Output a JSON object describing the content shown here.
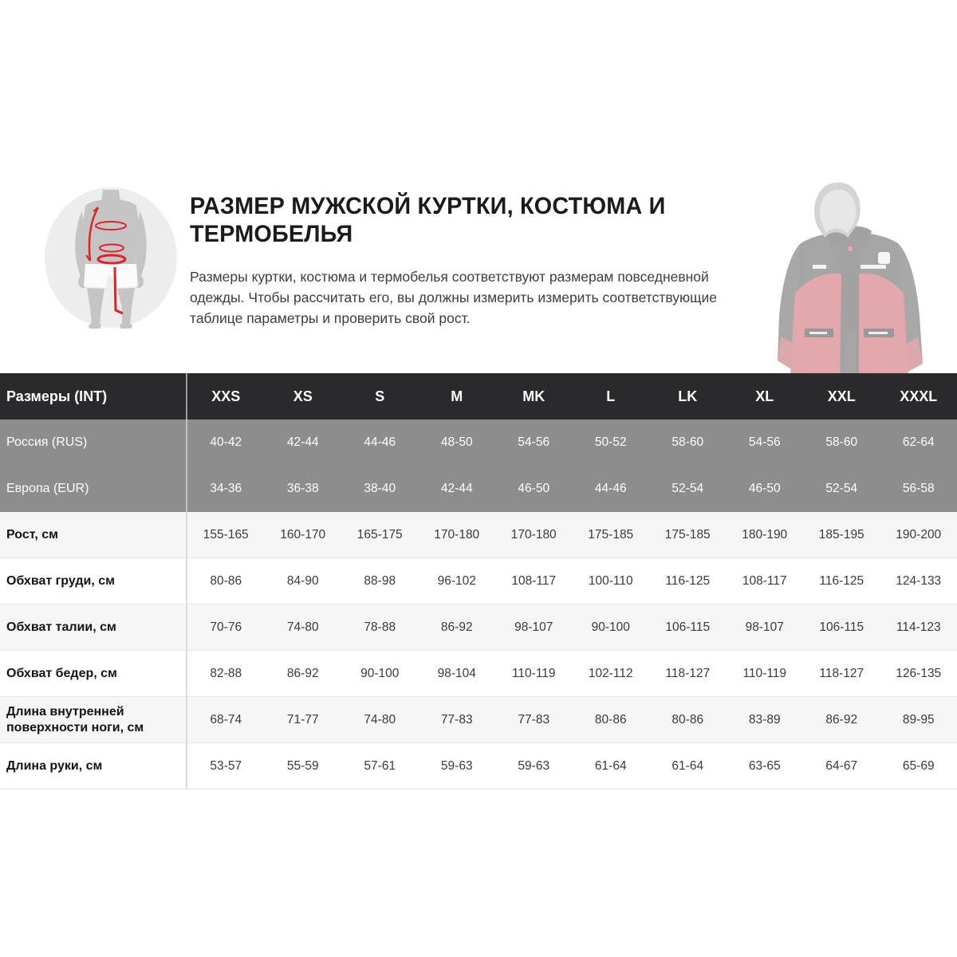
{
  "header": {
    "title": "Размер мужской куртки, костюма и термобелья",
    "description": "Размеры куртки, костюма и термобелья соответствуют размерам повседневной одежды. Чтобы рассчитать его, вы должны измерить измерить соответствующие таблице параметры и проверить свой рост."
  },
  "illustrations": {
    "body_diagram": "body-measurement-diagram",
    "jacket_image": "jacket-product-image"
  },
  "colors": {
    "accent_red": "#e31e24",
    "header_dark": "#2a2a2c",
    "row_gray": "#8d8d8d",
    "row_light": "#f6f6f6",
    "silhouette_gray": "#c5c5c5"
  },
  "table": {
    "header": {
      "label": "Размеры (INT)",
      "values": [
        "XXS",
        "XS",
        "S",
        "M",
        "MK",
        "L",
        "LK",
        "XL",
        "XXL",
        "XXXL"
      ]
    },
    "rows": [
      {
        "label": "Россия (RUS)",
        "values": [
          "40-42",
          "42-44",
          "44-46",
          "48-50",
          "54-56",
          "50-52",
          "58-60",
          "54-56",
          "58-60",
          "62-64"
        ]
      },
      {
        "label": "Европа (EUR)",
        "values": [
          "34-36",
          "36-38",
          "38-40",
          "42-44",
          "46-50",
          "44-46",
          "52-54",
          "46-50",
          "52-54",
          "56-58"
        ]
      },
      {
        "label": "Рост, см",
        "values": [
          "155-165",
          "160-170",
          "165-175",
          "170-180",
          "170-180",
          "175-185",
          "175-185",
          "180-190",
          "185-195",
          "190-200"
        ]
      },
      {
        "label": "Обхват груди, см",
        "values": [
          "80-86",
          "84-90",
          "88-98",
          "96-102",
          "108-117",
          "100-110",
          "116-125",
          "108-117",
          "116-125",
          "124-133"
        ]
      },
      {
        "label": "Обхват талии, см",
        "values": [
          "70-76",
          "74-80",
          "78-88",
          "86-92",
          "98-107",
          "90-100",
          "106-115",
          "98-107",
          "106-115",
          "114-123"
        ]
      },
      {
        "label": "Обхват бедер, см",
        "values": [
          "82-88",
          "86-92",
          "90-100",
          "98-104",
          "110-119",
          "102-112",
          "118-127",
          "110-119",
          "118-127",
          "126-135"
        ]
      },
      {
        "label": "Длина внутренней поверхности ноги, см",
        "values": [
          "68-74",
          "71-77",
          "74-80",
          "77-83",
          "77-83",
          "80-86",
          "80-86",
          "83-89",
          "86-92",
          "89-95"
        ]
      },
      {
        "label": "Длина руки, см",
        "values": [
          "53-57",
          "55-59",
          "57-61",
          "59-63",
          "59-63",
          "61-64",
          "61-64",
          "63-65",
          "64-67",
          "65-69"
        ]
      }
    ]
  }
}
